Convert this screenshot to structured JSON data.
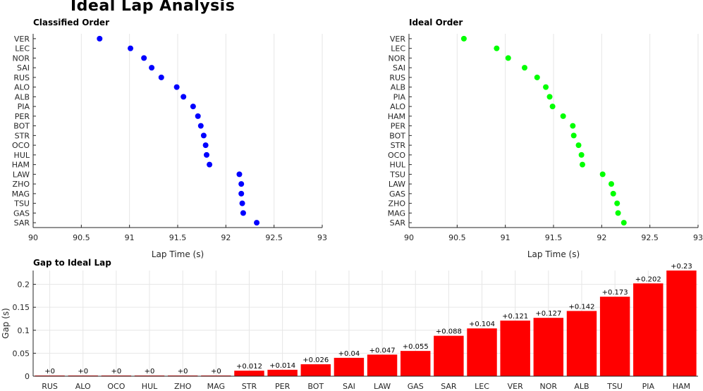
{
  "title": "Ideal Lap Analysis",
  "colors": {
    "classified": "#0000ff",
    "ideal": "#00ff00",
    "gap": "#ff0000",
    "grid": "#e6e6e6",
    "axis": "#262626"
  },
  "chart_data": [
    {
      "type": "scatter",
      "title": "Classified Order",
      "xlabel": "Lap Time (s)",
      "ylabel": "",
      "xlim": [
        90,
        93
      ],
      "xticks": [
        "90",
        "90.5",
        "91",
        "91.5",
        "92",
        "92.5",
        "93"
      ],
      "categories": [
        "VER",
        "LEC",
        "NOR",
        "SAI",
        "RUS",
        "ALO",
        "ALB",
        "PIA",
        "PER",
        "BOT",
        "STR",
        "OCO",
        "HUL",
        "HAM",
        "LAW",
        "ZHO",
        "MAG",
        "TSU",
        "GAS",
        "SAR"
      ],
      "values": [
        90.69,
        91.01,
        91.15,
        91.23,
        91.33,
        91.49,
        91.56,
        91.66,
        91.71,
        91.74,
        91.77,
        91.79,
        91.8,
        91.83,
        92.14,
        92.16,
        92.16,
        92.17,
        92.18,
        92.32
      ],
      "grid": true
    },
    {
      "type": "scatter",
      "title": "Ideal Order",
      "xlabel": "Lap Time (s)",
      "ylabel": "",
      "xlim": [
        90,
        93
      ],
      "xticks": [
        "90",
        "90.5",
        "91",
        "91.5",
        "92",
        "92.5",
        "93"
      ],
      "categories": [
        "VER",
        "LEC",
        "NOR",
        "SAI",
        "RUS",
        "ALB",
        "PIA",
        "ALO",
        "HAM",
        "PER",
        "BOT",
        "STR",
        "OCO",
        "HUL",
        "TSU",
        "LAW",
        "GAS",
        "ZHO",
        "MAG",
        "SAR"
      ],
      "values": [
        90.57,
        90.91,
        91.03,
        91.2,
        91.33,
        91.42,
        91.46,
        91.49,
        91.6,
        91.7,
        91.71,
        91.76,
        91.79,
        91.8,
        92.01,
        92.1,
        92.12,
        92.16,
        92.17,
        92.23
      ],
      "grid": true
    },
    {
      "type": "bar",
      "title": "Gap to Ideal Lap",
      "xlabel": "",
      "ylabel": "Gap (s)",
      "ylim": [
        0,
        0.23
      ],
      "yticks": [
        "0",
        "0.05",
        "0.1",
        "0.15",
        "0.2"
      ],
      "categories": [
        "RUS",
        "ALO",
        "OCO",
        "HUL",
        "ZHO",
        "MAG",
        "STR",
        "PER",
        "BOT",
        "SAI",
        "LAW",
        "GAS",
        "SAR",
        "LEC",
        "VER",
        "NOR",
        "ALB",
        "TSU",
        "PIA",
        "HAM"
      ],
      "values": [
        0,
        0,
        0,
        0,
        0,
        0,
        0.012,
        0.014,
        0.026,
        0.04,
        0.047,
        0.055,
        0.088,
        0.104,
        0.121,
        0.127,
        0.142,
        0.173,
        0.202,
        0.23
      ],
      "labels": [
        "+0",
        "+0",
        "+0",
        "+0",
        "+0",
        "+0",
        "+0.012",
        "+0.014",
        "+0.026",
        "+0.04",
        "+0.047",
        "+0.055",
        "+0.088",
        "+0.104",
        "+0.121",
        "+0.127",
        "+0.142",
        "+0.173",
        "+0.202",
        "+0.23"
      ],
      "grid": true
    }
  ]
}
